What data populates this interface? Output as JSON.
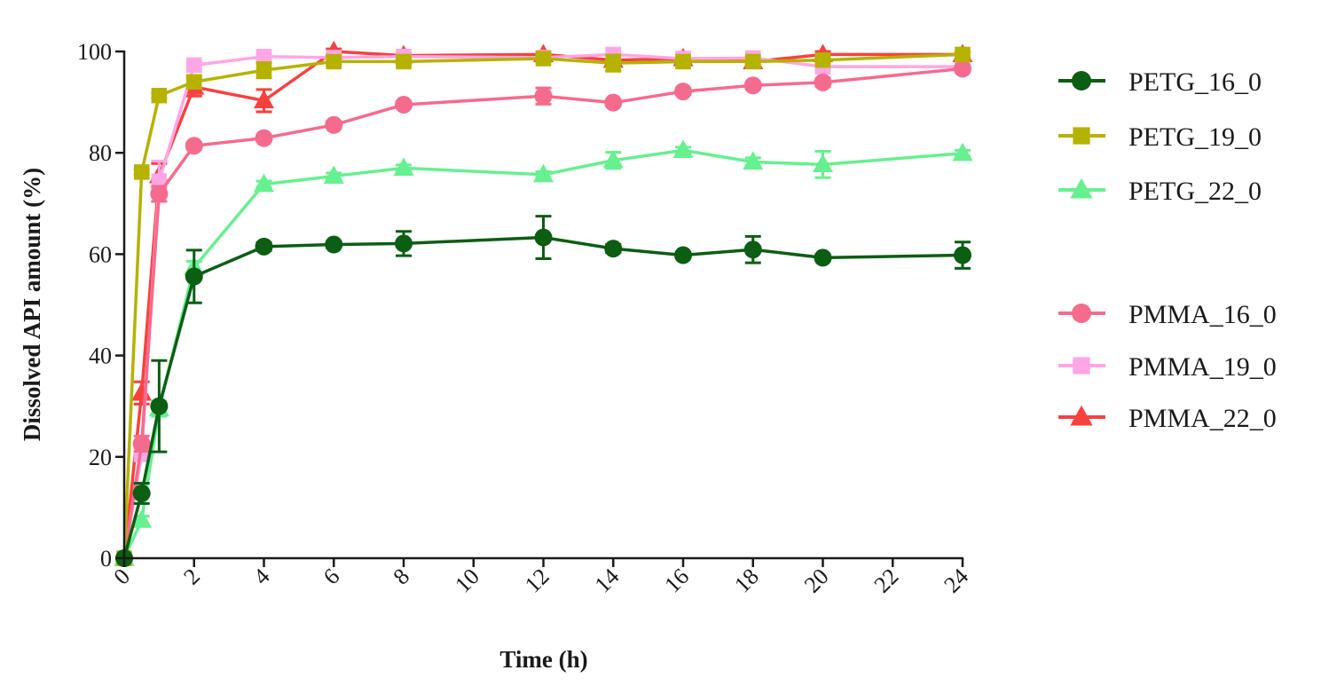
{
  "chart_data": {
    "type": "line",
    "title": "",
    "xlabel": "Time (h)",
    "ylabel": "Dissolved API amount (%)",
    "xlim": [
      0,
      24
    ],
    "ylim": [
      0,
      100
    ],
    "xticks": [
      0,
      2,
      4,
      6,
      8,
      10,
      12,
      14,
      16,
      18,
      20,
      22,
      24
    ],
    "yticks": [
      0,
      20,
      40,
      60,
      80,
      100
    ],
    "x_tick_labels": [
      "0",
      "2",
      "4",
      "6",
      "8",
      "10",
      "12",
      "14",
      "16",
      "18",
      "20",
      "22",
      "24"
    ],
    "y_tick_labels": [
      "0",
      "20",
      "40",
      "60",
      "80",
      "100"
    ],
    "legend_position": "right",
    "series": [
      {
        "name": "PETG_16_0",
        "color": "#0b5e12",
        "marker": "circle",
        "x": [
          0,
          0.5,
          1,
          2,
          4,
          6,
          8,
          12,
          14,
          16,
          18,
          20,
          24
        ],
        "y": [
          0,
          12.8,
          30,
          55.6,
          61.5,
          61.9,
          62.1,
          63.3,
          61.1,
          59.8,
          60.9,
          59.3,
          59.8
        ],
        "err": [
          0,
          2.0,
          9.0,
          5.2,
          0.8,
          0.6,
          2.4,
          4.2,
          0.8,
          0.6,
          2.6,
          0.6,
          2.6
        ]
      },
      {
        "name": "PETG_19_0",
        "color": "#b5b200",
        "marker": "square",
        "x": [
          0,
          0.5,
          1,
          2,
          4,
          6,
          8,
          12,
          14,
          16,
          18,
          20,
          24
        ],
        "y": [
          0,
          76.2,
          91.3,
          94.0,
          96.3,
          98.0,
          98.0,
          98.6,
          97.7,
          98.0,
          98.0,
          98.3,
          99.4
        ],
        "err": [
          0,
          0.5,
          0.5,
          1.2,
          1.5,
          0.8,
          0.6,
          0.6,
          1.6,
          0.6,
          1.0,
          0.6,
          0.5
        ]
      },
      {
        "name": "PETG_22_0",
        "color": "#66f08f",
        "marker": "triangle",
        "x": [
          0,
          0.5,
          1,
          2,
          4,
          6,
          8,
          12,
          14,
          16,
          18,
          20,
          24
        ],
        "y": [
          0,
          7.5,
          29.5,
          57.4,
          73.8,
          75.4,
          77.0,
          75.7,
          78.5,
          80.5,
          78.2,
          77.7,
          79.9
        ],
        "err": [
          0,
          0.8,
          1.5,
          1.2,
          0.6,
          0.6,
          0.6,
          0.6,
          1.6,
          0.6,
          0.8,
          2.6,
          0.6
        ]
      },
      {
        "name": "PMMA_16_0",
        "color": "#f56b8d",
        "marker": "circle",
        "x": [
          0,
          0.5,
          1,
          2,
          4,
          6,
          8,
          12,
          14,
          16,
          18,
          20,
          24
        ],
        "y": [
          0,
          22.6,
          71.9,
          81.4,
          82.9,
          85.5,
          89.5,
          91.2,
          89.9,
          92.1,
          93.3,
          93.9,
          96.6
        ],
        "err": [
          0,
          1.5,
          1.5,
          0.6,
          0.6,
          0.6,
          0.6,
          1.6,
          0.6,
          0.6,
          0.6,
          0.8,
          0.5
        ]
      },
      {
        "name": "PMMA_19_0",
        "color": "#ffa6e6",
        "marker": "square",
        "x": [
          0,
          0.5,
          1,
          2,
          4,
          6,
          8,
          12,
          14,
          16,
          18,
          20,
          24
        ],
        "y": [
          0,
          20.5,
          74.4,
          97.3,
          99.0,
          98.8,
          99.0,
          98.8,
          99.4,
          98.6,
          98.7,
          97.0,
          97.0
        ],
        "err": [
          0,
          1.2,
          4.0,
          0.6,
          0.6,
          0.5,
          0.5,
          0.6,
          1.0,
          0.6,
          0.6,
          0.6,
          0.5
        ]
      },
      {
        "name": "PMMA_22_0",
        "color": "#f7413e",
        "marker": "triangle",
        "x": [
          0,
          0.5,
          1,
          2,
          4,
          6,
          8,
          12,
          14,
          16,
          18,
          20,
          24
        ],
        "y": [
          0,
          32.6,
          75.5,
          93.0,
          90.3,
          100.0,
          99.2,
          99.4,
          98.3,
          98.6,
          98.0,
          99.4,
          99.4
        ],
        "err": [
          0,
          2.2,
          2.4,
          1.8,
          2.2,
          0.5,
          0.5,
          0.5,
          1.0,
          0.6,
          0.6,
          0.6,
          0.5
        ]
      }
    ]
  }
}
